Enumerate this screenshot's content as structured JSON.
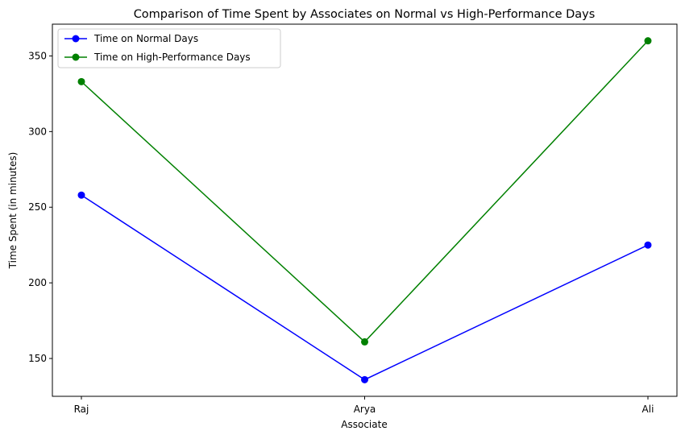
{
  "chart_data": {
    "type": "line",
    "title": "Comparison of Time Spent by Associates on Normal vs High-Performance Days",
    "xlabel": "Associate",
    "ylabel": "Time Spent (in minutes)",
    "categories": [
      "Raj",
      "Arya",
      "Ali"
    ],
    "ylim": [
      125,
      371
    ],
    "yticks": [
      150,
      200,
      250,
      300,
      350
    ],
    "grid": false,
    "legend_position": "top-left",
    "series": [
      {
        "name": "Time on Normal Days",
        "color": "#0000ff",
        "marker": "circle",
        "values": [
          258,
          136,
          225
        ]
      },
      {
        "name": "Time on High-Performance Days",
        "color": "#008000",
        "marker": "circle",
        "values": [
          333,
          161,
          360
        ]
      }
    ]
  }
}
